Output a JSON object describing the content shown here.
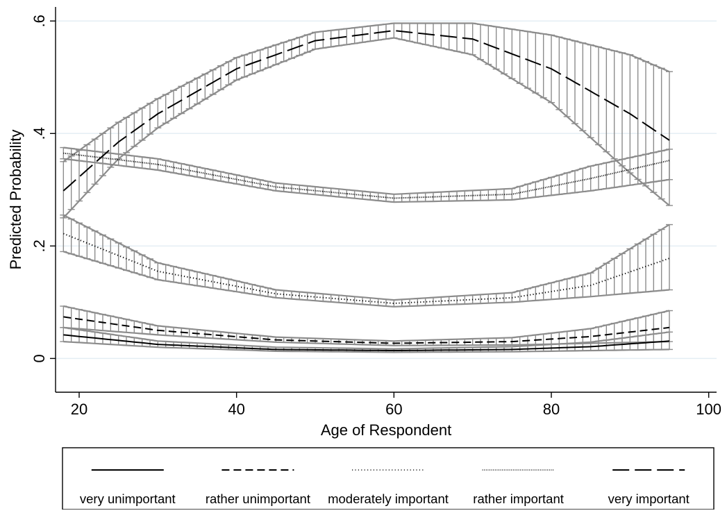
{
  "chart_data": {
    "type": "line",
    "title": "",
    "xlabel": "Age of Respondent",
    "ylabel": "Predicted Probability",
    "xlim": [
      17,
      101
    ],
    "ylim": [
      -0.06,
      0.625
    ],
    "xticks": [
      20,
      40,
      60,
      80,
      100
    ],
    "xtick_labels": [
      "20",
      "40",
      "60",
      "80",
      "100"
    ],
    "yticks": [
      0,
      0.2,
      0.4,
      0.6
    ],
    "ytick_labels": [
      "0",
      ".2",
      ".4",
      ".6"
    ],
    "grid": true,
    "legend_position": "bottom",
    "x_range": [
      18,
      95
    ],
    "error_bars": true,
    "series": [
      {
        "name": "very unimportant",
        "line_style": "solid",
        "x": [
          18,
          30,
          45,
          60,
          75,
          85,
          95
        ],
        "y": [
          0.042,
          0.025,
          0.016,
          0.014,
          0.016,
          0.021,
          0.031
        ],
        "ci_low": [
          0.03,
          0.02,
          0.013,
          0.011,
          0.012,
          0.014,
          0.016
        ],
        "ci_high": [
          0.055,
          0.031,
          0.02,
          0.017,
          0.021,
          0.029,
          0.047
        ]
      },
      {
        "name": "rather unimportant",
        "line_style": "dashed",
        "x": [
          18,
          30,
          45,
          60,
          75,
          85,
          95
        ],
        "y": [
          0.074,
          0.05,
          0.033,
          0.027,
          0.03,
          0.039,
          0.055
        ],
        "ci_low": [
          0.055,
          0.042,
          0.029,
          0.023,
          0.024,
          0.027,
          0.03
        ],
        "ci_high": [
          0.093,
          0.058,
          0.038,
          0.031,
          0.037,
          0.053,
          0.085
        ]
      },
      {
        "name": "moderately important",
        "line_style": "dotted",
        "x": [
          18,
          30,
          45,
          60,
          75,
          85,
          95
        ],
        "y": [
          0.222,
          0.155,
          0.115,
          0.098,
          0.108,
          0.13,
          0.178
        ],
        "ci_low": [
          0.19,
          0.14,
          0.108,
          0.092,
          0.1,
          0.11,
          0.122
        ],
        "ci_high": [
          0.255,
          0.17,
          0.122,
          0.104,
          0.117,
          0.152,
          0.238
        ]
      },
      {
        "name": "rather important",
        "line_style": "dense-dotted",
        "x": [
          18,
          30,
          45,
          60,
          75,
          85,
          95
        ],
        "y": [
          0.365,
          0.345,
          0.305,
          0.285,
          0.292,
          0.32,
          0.352
        ],
        "ci_low": [
          0.355,
          0.335,
          0.298,
          0.278,
          0.282,
          0.298,
          0.318
        ],
        "ci_high": [
          0.375,
          0.355,
          0.312,
          0.292,
          0.302,
          0.342,
          0.372
        ]
      },
      {
        "name": "very important",
        "line_style": "long-dash",
        "x": [
          18,
          25,
          30,
          40,
          50,
          60,
          70,
          80,
          90,
          95
        ],
        "y": [
          0.298,
          0.385,
          0.435,
          0.515,
          0.565,
          0.583,
          0.568,
          0.515,
          0.435,
          0.388
        ],
        "ci_low": [
          0.25,
          0.355,
          0.41,
          0.495,
          0.55,
          0.57,
          0.54,
          0.455,
          0.33,
          0.272
        ],
        "ci_high": [
          0.35,
          0.42,
          0.462,
          0.535,
          0.58,
          0.596,
          0.596,
          0.575,
          0.54,
          0.51
        ]
      }
    ]
  }
}
